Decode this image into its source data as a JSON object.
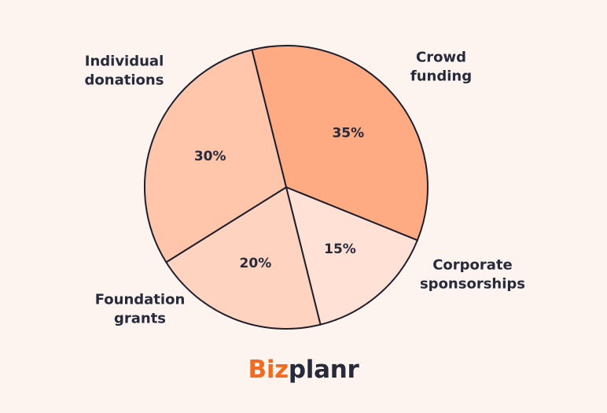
{
  "chart_data": {
    "type": "pie",
    "slices": [
      {
        "label": [
          "Individual",
          "donations"
        ],
        "value": 35,
        "value_label": "35%",
        "color": "#FEAA82"
      },
      {
        "label": [
          "Crowd",
          "funding"
        ],
        "value": 15,
        "value_label": "15%",
        "color": "#FFE2D5"
      },
      {
        "label": [
          "Corporate",
          "sponsorships"
        ],
        "value": 20,
        "value_label": "20%",
        "color": "#FED4C0"
      },
      {
        "label": [
          "Foundation",
          "grants"
        ],
        "value": 30,
        "value_label": "30%",
        "color": "#FFC6AB"
      }
    ],
    "start_angle_deg": -104,
    "direction": "clockwise"
  },
  "brand": {
    "name_part1": "Biz",
    "name_part2": "planr",
    "accent_color": "#F26B21",
    "text_color": "#262A3A",
    "background_color": "#FDF4F0"
  }
}
